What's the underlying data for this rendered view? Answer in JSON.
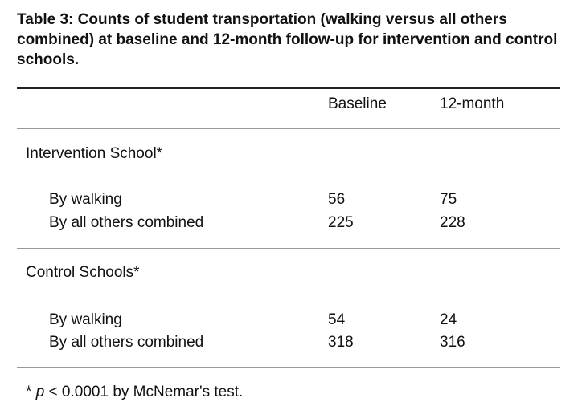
{
  "caption": "Table 3: Counts of student transportation (walking versus all others combined) at baseline and 12-month follow-up for intervention and control schools.",
  "columns": {
    "baseline": "Baseline",
    "month12": "12-month"
  },
  "groups": [
    {
      "title": "Intervention School*",
      "rows": [
        {
          "label": "By walking",
          "baseline": "56",
          "month12": "75"
        },
        {
          "label": "By all others combined",
          "baseline": "225",
          "month12": "228"
        }
      ]
    },
    {
      "title": "Control Schools*",
      "rows": [
        {
          "label": "By walking",
          "baseline": "54",
          "month12": "24"
        },
        {
          "label": "By all others combined",
          "baseline": "318",
          "month12": "316"
        }
      ]
    }
  ],
  "footnote": {
    "mark": "*",
    "p": "p",
    "text": "< 0.0001 by McNemar's test."
  }
}
